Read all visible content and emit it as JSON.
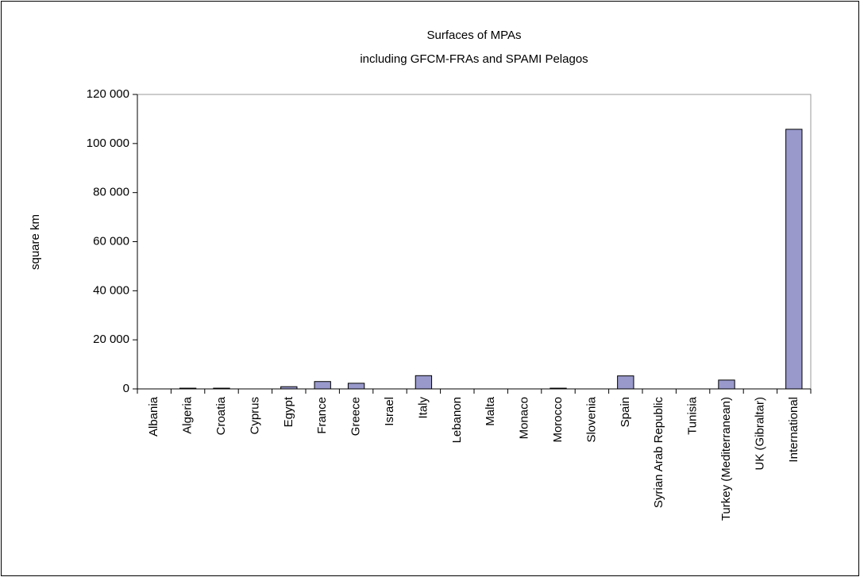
{
  "chart_data": {
    "type": "bar",
    "title": "Surfaces of MPAs",
    "subtitle": "including GFCM-FRAs and SPAMI Pelagos",
    "y_label": "square km",
    "categories": [
      "Albania",
      "Algeria",
      "Croatia",
      "Cyprus",
      "Egypt",
      "France",
      "Greece",
      "Israel",
      "Italy",
      "Lebanon",
      "Malta",
      "Monaco",
      "Morocco",
      "Slovenia",
      "Spain",
      "Syrian Arab Republic",
      "Tunisia",
      "Turkey (Mediterranean)",
      "UK (Gibraltar)",
      "International"
    ],
    "values": [
      0,
      300,
      300,
      0,
      900,
      3000,
      2300,
      0,
      5400,
      0,
      0,
      0,
      300,
      0,
      5300,
      0,
      0,
      3600,
      0,
      105800
    ],
    "color": "#9999cc",
    "ylim": [
      0,
      120000
    ],
    "yticks": [
      {
        "value": 0,
        "label": "0"
      },
      {
        "value": 20000,
        "label": "20 000"
      },
      {
        "value": 40000,
        "label": "40 000"
      },
      {
        "value": 60000,
        "label": "60 000"
      },
      {
        "value": 80000,
        "label": "80 000"
      },
      {
        "value": 100000,
        "label": "100 000"
      },
      {
        "value": 120000,
        "label": "120 000"
      }
    ],
    "grid": false
  }
}
